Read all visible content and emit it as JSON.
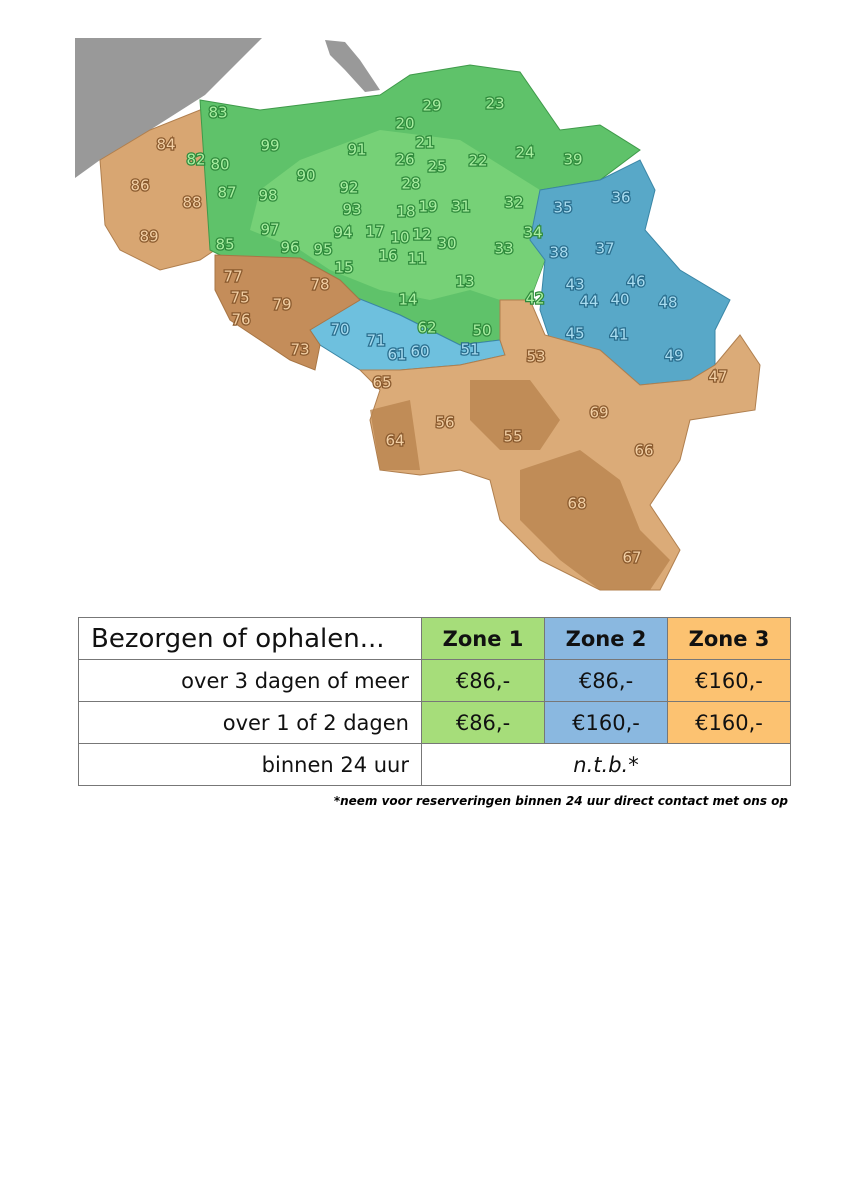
{
  "map": {
    "labels": [
      "83",
      "99",
      "91",
      "29",
      "23",
      "20",
      "21",
      "26",
      "25",
      "22",
      "24",
      "39",
      "82",
      "80",
      "90",
      "92",
      "28",
      "87",
      "98",
      "93",
      "18",
      "19",
      "31",
      "32",
      "97",
      "94",
      "17",
      "10",
      "12",
      "30",
      "34",
      "33",
      "85",
      "96",
      "95",
      "16",
      "11",
      "15",
      "13",
      "14",
      "42",
      "62",
      "50",
      "35",
      "36",
      "38",
      "37",
      "43",
      "46",
      "48",
      "44",
      "40",
      "70",
      "71",
      "45",
      "41",
      "49",
      "61",
      "60",
      "51",
      "84",
      "86",
      "88",
      "89",
      "77",
      "78",
      "75",
      "79",
      "76",
      "73",
      "53",
      "47",
      "65",
      "69",
      "56",
      "55",
      "64",
      "66",
      "68",
      "67"
    ]
  },
  "table": {
    "header": [
      "Bezorgen of ophalen...",
      "Zone 1",
      "Zone 2",
      "Zone 3"
    ],
    "rows": [
      [
        "over 3 dagen of meer",
        "€86,-",
        "€86,-",
        "€160,-"
      ],
      [
        "over 1 of 2 dagen",
        "€86,-",
        "€160,-",
        "€160,-"
      ],
      [
        "binnen 24 uur",
        "n.t.b.*"
      ]
    ]
  },
  "footnote": "*neem voor reserveringen binnen 24 uur direct contact met ons op"
}
